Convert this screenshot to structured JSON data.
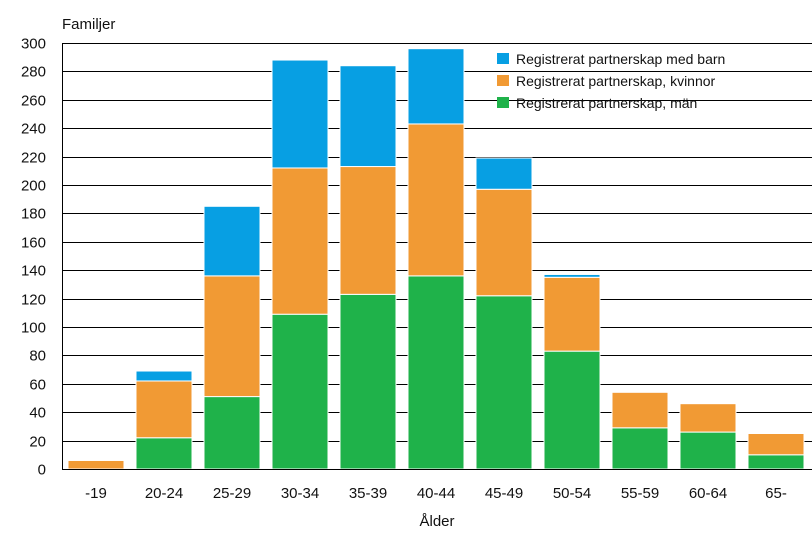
{
  "chart_data": {
    "type": "bar",
    "stacked": true,
    "title": "",
    "ylabel": "Familjer",
    "xlabel": "Ålder",
    "ylim": [
      0,
      300
    ],
    "yticks": [
      0,
      20,
      40,
      60,
      80,
      100,
      120,
      140,
      160,
      180,
      200,
      220,
      240,
      260,
      280,
      300
    ],
    "grid": true,
    "legend_position": "top-right",
    "categories": [
      "-19",
      "20-24",
      "25-29",
      "30-34",
      "35-39",
      "40-44",
      "45-49",
      "50-54",
      "55-59",
      "60-64",
      "65-"
    ],
    "series": [
      {
        "name": "Registrerat partnerskap, män",
        "color": "#1fb24a",
        "values": [
          0,
          22,
          51,
          109,
          123,
          136,
          122,
          83,
          29,
          26,
          10
        ]
      },
      {
        "name": "Registrerat partnerskap, kvinnor",
        "color": "#f19a34",
        "values": [
          6,
          40,
          85,
          103,
          90,
          107,
          75,
          52,
          25,
          20,
          15
        ]
      },
      {
        "name": "Registrerat partnerskap med barn",
        "color": "#079fe3",
        "values": [
          0,
          7,
          49,
          76,
          71,
          53,
          22,
          2,
          0,
          0,
          0
        ]
      }
    ],
    "legend_order": [
      2,
      1,
      0
    ]
  }
}
